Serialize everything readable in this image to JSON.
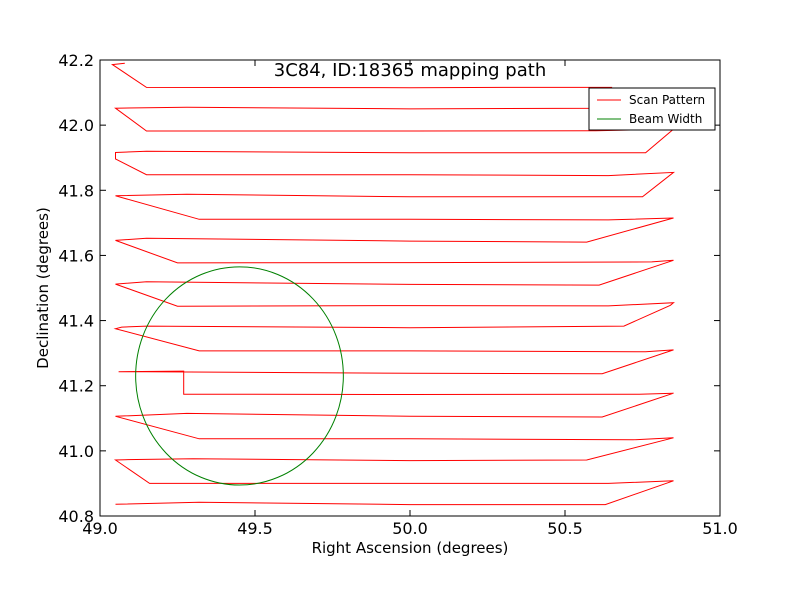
{
  "chart_data": {
    "type": "line",
    "title": "3C84, ID:18365 mapping path",
    "xlabel": "Right Ascension (degrees)",
    "ylabel": "Declination (degrees)",
    "xlim": [
      49.0,
      51.0
    ],
    "ylim": [
      40.8,
      42.2
    ],
    "xticks": [
      49.0,
      49.5,
      50.0,
      50.5,
      51.0
    ],
    "xtick_labels": [
      "49.0",
      "49.5",
      "50.0",
      "50.5",
      "51.0"
    ],
    "yticks": [
      40.8,
      41.0,
      41.2,
      41.4,
      41.6,
      41.8,
      42.0,
      42.2
    ],
    "ytick_labels": [
      "40.8",
      "41.0",
      "41.2",
      "41.4",
      "41.6",
      "41.8",
      "42.0",
      "42.2"
    ],
    "grid": false,
    "legend_position": "top-right",
    "series": [
      {
        "name": "Scan Pattern",
        "color": "#ff0000",
        "type": "line",
        "x": [
          49.05,
          49.32,
          50.0,
          50.63,
          50.85,
          50.64,
          50.0,
          49.16,
          49.05,
          49.08,
          49.3,
          50.0,
          50.57,
          50.85,
          50.72,
          50.0,
          49.32,
          49.05,
          49.28,
          50.0,
          50.62,
          50.85,
          50.74,
          50.0,
          49.27,
          49.27,
          49.06,
          49.15,
          50.0,
          50.62,
          50.85,
          50.76,
          50.0,
          49.32,
          49.05,
          49.07,
          49.15,
          50.0,
          50.69,
          50.84,
          50.85,
          50.64,
          50.0,
          49.25,
          49.05,
          49.15,
          50.0,
          50.61,
          50.85,
          50.78,
          50.0,
          49.25,
          49.05,
          49.15,
          50.0,
          50.57,
          50.85,
          50.64,
          50.0,
          49.32,
          49.05,
          49.28,
          50.0,
          50.75,
          50.85,
          50.64,
          50.0,
          49.15,
          49.05,
          49.05,
          49.15,
          50.0,
          50.76,
          50.85,
          50.6,
          50.0,
          49.15,
          49.05,
          49.28,
          50.0,
          50.62,
          50.65,
          50.3,
          50.0,
          49.15,
          49.04,
          49.08
        ],
        "y": [
          40.836,
          40.842,
          40.835,
          40.835,
          40.908,
          40.9,
          40.9,
          40.9,
          40.972,
          40.973,
          40.976,
          40.97,
          40.972,
          41.04,
          41.034,
          41.037,
          41.037,
          41.106,
          41.115,
          41.106,
          41.104,
          41.177,
          41.174,
          41.173,
          41.174,
          41.245,
          41.243,
          41.243,
          41.238,
          41.237,
          41.31,
          41.304,
          41.307,
          41.307,
          41.375,
          41.38,
          41.383,
          41.378,
          41.383,
          41.447,
          41.455,
          41.445,
          41.446,
          41.444,
          41.512,
          41.519,
          41.511,
          41.509,
          41.585,
          41.58,
          41.578,
          41.577,
          41.646,
          41.653,
          41.644,
          41.641,
          41.715,
          41.709,
          41.711,
          41.711,
          41.783,
          41.788,
          41.78,
          41.78,
          41.855,
          41.845,
          41.848,
          41.848,
          41.896,
          41.916,
          41.92,
          41.915,
          41.915,
          41.988,
          41.983,
          41.982,
          41.982,
          42.052,
          42.055,
          42.05,
          42.052,
          42.116,
          42.116,
          42.115,
          42.116,
          42.186,
          42.19
        ]
      },
      {
        "name": "Beam Width",
        "color": "#008000",
        "type": "circle",
        "center_ra": 49.45,
        "center_dec": 41.23,
        "radius_ra": 0.335,
        "radius_dec": 0.335
      }
    ]
  }
}
